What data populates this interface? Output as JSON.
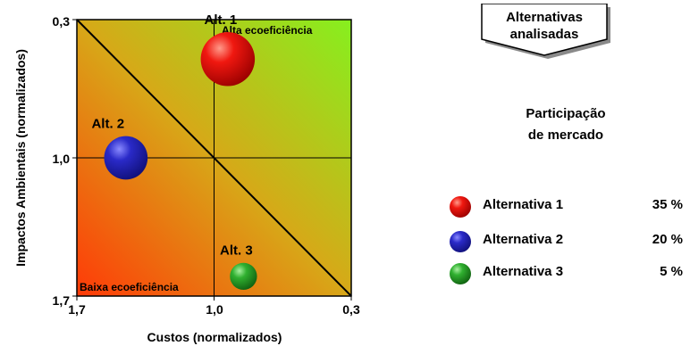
{
  "chart_data": {
    "type": "bubble",
    "xlabel": "Custos (normalizados)",
    "ylabel": "Impactos Ambientais (normalizados)",
    "x_ticks": [
      "1,7",
      "1,0",
      "0,3"
    ],
    "y_ticks": [
      "0,3",
      "1,0",
      "1,7"
    ],
    "xlim": [
      1.7,
      0.3
    ],
    "ylim": [
      1.7,
      0.3
    ],
    "x_reversed": true,
    "y_reversed": true,
    "region_labels": {
      "high": "Alta ecoeficiência",
      "low": "Baixa ecoeficiência"
    },
    "points": [
      {
        "label": "Alt. 1",
        "x": 0.93,
        "y": 0.5,
        "share": 35,
        "color": "#e0140f"
      },
      {
        "label": "Alt. 2",
        "x": 1.45,
        "y": 1.0,
        "share": 20,
        "color": "#2a2ab0"
      },
      {
        "label": "Alt. 3",
        "x": 0.85,
        "y": 1.6,
        "share": 5,
        "color": "#2a9a2a"
      }
    ]
  },
  "callout": {
    "line1": "Alternativas",
    "line2": "analisadas"
  },
  "share_title": {
    "line1": "Participação",
    "line2": "de  mercado"
  },
  "legend": [
    {
      "label": "Alternativa 1",
      "value": "35 %",
      "color": "#e0140f"
    },
    {
      "label": "Alternativa 2",
      "value": "20 %",
      "color": "#2a2ab0"
    },
    {
      "label": "Alternativa 3",
      "value": "5 %",
      "color": "#2a9a2a"
    }
  ]
}
